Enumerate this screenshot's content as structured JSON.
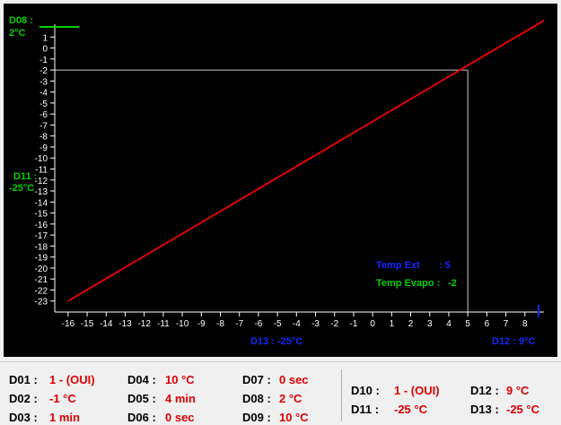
{
  "chart_data": {
    "type": "line",
    "x_ticks": [
      -16,
      -15,
      -14,
      -13,
      -12,
      -11,
      -10,
      -9,
      -8,
      -7,
      -6,
      -5,
      -4,
      -3,
      -2,
      -1,
      0,
      1,
      2,
      3,
      4,
      5,
      6,
      7,
      8
    ],
    "y_ticks": [
      1,
      0,
      -1,
      -2,
      -3,
      -4,
      -5,
      -6,
      -7,
      -8,
      -9,
      -10,
      -11,
      -12,
      -13,
      -14,
      -15,
      -16,
      -17,
      -18,
      -19,
      -20,
      -21,
      -22,
      -23
    ],
    "xlim": [
      -16.7,
      9
    ],
    "ylim": [
      -24,
      2
    ],
    "series": [
      {
        "color": "#e00000",
        "points": [
          [
            -16,
            -23
          ],
          [
            9,
            2.5
          ]
        ]
      }
    ],
    "crosshair": {
      "x": 5,
      "y": -2
    },
    "y_top_label": [
      "D08 :",
      "2°C"
    ],
    "y_mid_label": [
      "D11 :",
      "-25°C"
    ],
    "x_left_label": "D13 : -25°C",
    "x_right_label": "D12 : 9°C",
    "legend": {
      "temp_ext_label": "Temp Ext",
      "temp_ext_value": ": 5",
      "temp_evapo_label": "Temp Evapo :",
      "temp_evapo_value": "-2"
    },
    "colors": {
      "line": "#e00000",
      "green": "#00d000",
      "blue": "#1028ff",
      "axis": "#ffffff",
      "crosshair": "#c8c8c8"
    }
  },
  "params": [
    {
      "name": "D01 :",
      "value": "1 - (OUI)"
    },
    {
      "name": "D02 :",
      "value": "-1 °C"
    },
    {
      "name": "D03 :",
      "value": "1 min"
    },
    {
      "name": "D04 :",
      "value": "10 °C"
    },
    {
      "name": "D05 :",
      "value": "4 min"
    },
    {
      "name": "D06 :",
      "value": "0 sec"
    },
    {
      "name": "D07 :",
      "value": "0 sec"
    },
    {
      "name": "D08 :",
      "value": "2 °C"
    },
    {
      "name": "D09 :",
      "value": "10 °C"
    },
    {
      "name": "D10 :",
      "value": "1 - (OUI)"
    },
    {
      "name": "D11 :",
      "value": "-25 °C"
    },
    {
      "name": "D12 :",
      "value": "9 °C"
    },
    {
      "name": "D13 :",
      "value": "-25 °C"
    }
  ]
}
